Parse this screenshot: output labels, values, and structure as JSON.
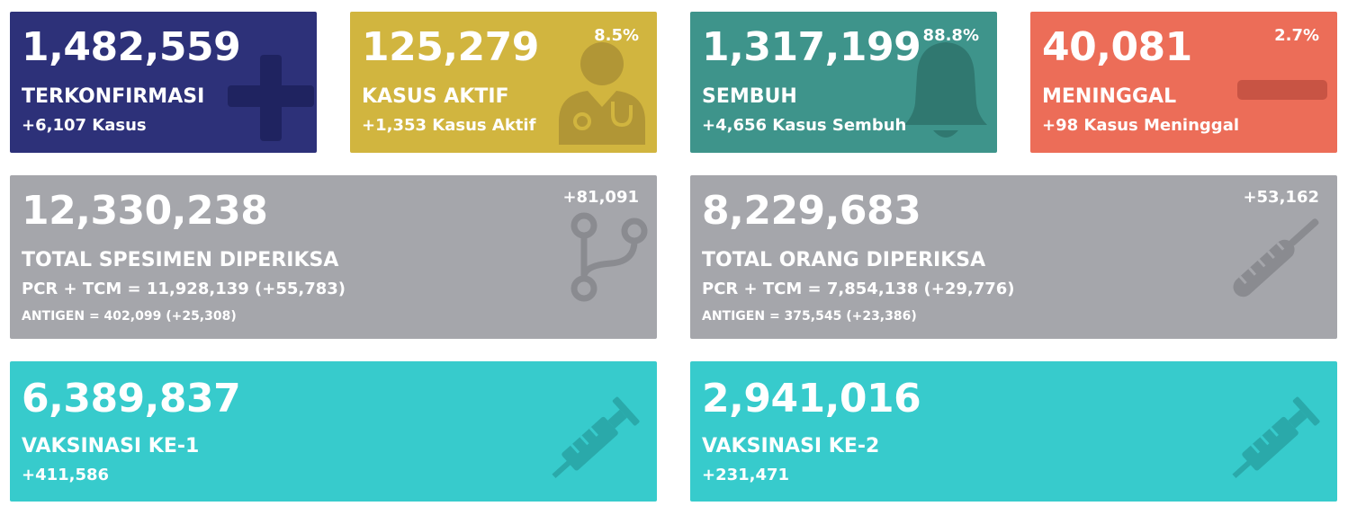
{
  "colors": {
    "confirmed": "#2d3179",
    "active": "#d1b53f",
    "recovered": "#3e948b",
    "deaths": "#ec6d58",
    "tests": "#a5a6ab",
    "vaccine": "#37cbcc"
  },
  "confirmed": {
    "value": "1,482,559",
    "label": "TERKONFIRMASI",
    "delta": "+6,107 Kasus",
    "icon": "plus-icon"
  },
  "active": {
    "value": "125,279",
    "percent": "8.5%",
    "label": "KASUS AKTIF",
    "delta": "+1,353 Kasus Aktif",
    "icon": "doctor-icon"
  },
  "recovered": {
    "value": "1,317,199",
    "percent": "88.8%",
    "label": "SEMBUH",
    "delta": "+4,656 Kasus Sembuh",
    "icon": "bell-icon"
  },
  "deaths": {
    "value": "40,081",
    "percent": "2.7%",
    "label": "MENINGGAL",
    "delta": "+98 Kasus Meninggal",
    "icon": "minus-icon"
  },
  "specimens": {
    "value": "12,330,238",
    "delta": "+81,091",
    "label": "TOTAL SPESIMEN DIPERIKSA",
    "pcr": "PCR + TCM = 11,928,139 (+55,783)",
    "antigen": "ANTIGEN = 402,099 (+25,308)",
    "icon": "branch-icon"
  },
  "people": {
    "value": "8,229,683",
    "delta": "+53,162",
    "label": "TOTAL ORANG DIPERIKSA",
    "pcr": "PCR + TCM = 7,854,138 (+29,776)",
    "antigen": "ANTIGEN = 375,545 (+23,386)",
    "icon": "thermometer-icon"
  },
  "vaccine1": {
    "value": "6,389,837",
    "label": "VAKSINASI KE-1",
    "delta": "+411,586",
    "icon": "syringe-icon"
  },
  "vaccine2": {
    "value": "2,941,016",
    "label": "VAKSINASI KE-2",
    "delta": "+231,471",
    "icon": "syringe-icon"
  }
}
